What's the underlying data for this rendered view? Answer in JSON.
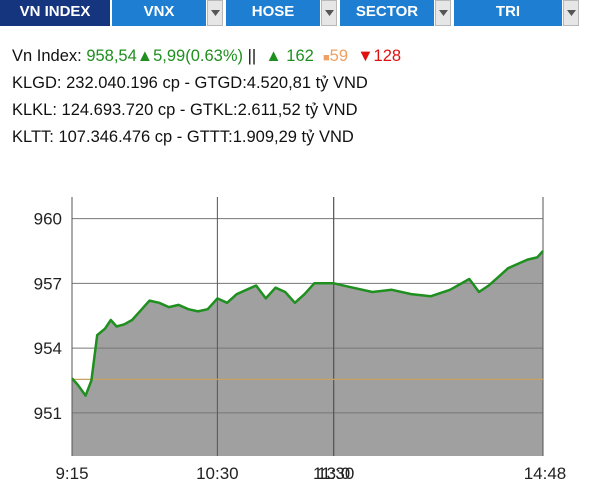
{
  "tabs": [
    {
      "label": "VN INDEX",
      "active": true
    },
    {
      "label": "VNX",
      "active": false
    },
    {
      "label": "HOSE",
      "active": false
    },
    {
      "label": "SECTOR",
      "active": false
    },
    {
      "label": "TRI",
      "active": false
    }
  ],
  "stats": {
    "index_label": "Vn Index:",
    "index_value": "958,54",
    "change": "5,99(0.63%)",
    "separator": "||",
    "advances": "162",
    "unchanged": "59",
    "declines": "128",
    "line2": "KLGD: 232.040.196 cp - GTGD:4.520,81 tỷ VND",
    "line3": "KLKL: 124.693.720 cp - GTKL:2.611,52 tỷ VND",
    "line4": "KLTT: 107.346.476 cp - GTTT:1.909,29 tỷ VND"
  },
  "colors": {
    "tab_bg": "#1e7fd2",
    "tab_active_bg": "#16357f",
    "up": "#1f8f1f",
    "flat": "#f0a060",
    "down": "#e01010",
    "area_fill": "#a0a0a0",
    "reference_line": "#c8a060"
  },
  "chart_data": {
    "type": "area",
    "title": "",
    "xlabel": "",
    "ylabel": "",
    "ylim": [
      949,
      961
    ],
    "yticks": [
      "960",
      "957",
      "954",
      "951"
    ],
    "xticks": [
      "9:15",
      "10:30",
      "11:30",
      "13:0",
      "14:48"
    ],
    "reference_value": 952.55,
    "grid": true,
    "series": [
      {
        "x": [
          "9:15",
          "9:18",
          "9:22",
          "9:25",
          "9:28",
          "9:32",
          "9:35",
          "9:38",
          "9:42",
          "9:46",
          "9:50",
          "9:55",
          "10:00",
          "10:05",
          "10:10",
          "10:15",
          "10:20",
          "10:25",
          "10:30",
          "10:35",
          "10:40",
          "10:45",
          "10:50",
          "10:55",
          "11:00",
          "11:05",
          "11:10",
          "11:15",
          "11:20",
          "11:25",
          "11:30",
          "13:00",
          "13:10",
          "13:20",
          "13:30",
          "13:40",
          "13:50",
          "14:00",
          "14:10",
          "14:15",
          "14:20",
          "14:25",
          "14:30",
          "14:35",
          "14:40",
          "14:45",
          "14:48"
        ],
        "values": [
          952.6,
          952.3,
          951.8,
          952.5,
          954.6,
          954.9,
          955.3,
          955.0,
          955.1,
          955.3,
          955.7,
          956.2,
          956.1,
          955.9,
          956.0,
          955.8,
          955.7,
          955.8,
          956.3,
          956.1,
          956.5,
          956.7,
          956.9,
          956.3,
          956.8,
          956.6,
          956.1,
          956.5,
          957.0,
          957.0,
          957.0,
          957.0,
          956.8,
          956.6,
          956.7,
          956.5,
          956.4,
          956.7,
          957.2,
          956.6,
          956.9,
          957.3,
          957.7,
          957.9,
          958.1,
          958.2,
          958.5
        ]
      }
    ]
  }
}
